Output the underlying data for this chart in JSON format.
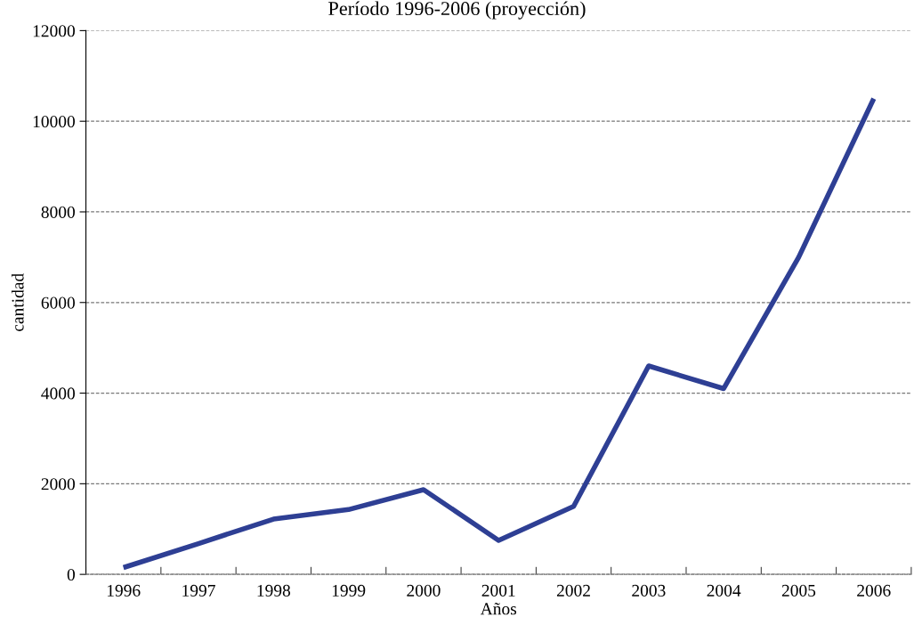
{
  "chart_data": {
    "type": "line",
    "title": "Período 1996-2006 (proyección)",
    "xlabel": "Años",
    "ylabel": "cantidad",
    "categories": [
      "1996",
      "1997",
      "1998",
      "1999",
      "2000",
      "2001",
      "2002",
      "2003",
      "2004",
      "2005",
      "2006"
    ],
    "series": [
      {
        "color": "#2e3f94",
        "values": [
          150,
          680,
          1220,
          1430,
          1870,
          750,
          1500,
          4600,
          4100,
          7000,
          10500
        ]
      }
    ],
    "ylim": [
      0,
      12000
    ],
    "yticks": [
      0,
      2000,
      4000,
      6000,
      8000,
      10000,
      12000
    ],
    "grid": "y",
    "legend": false,
    "marker": "none",
    "line_style": "solid"
  }
}
